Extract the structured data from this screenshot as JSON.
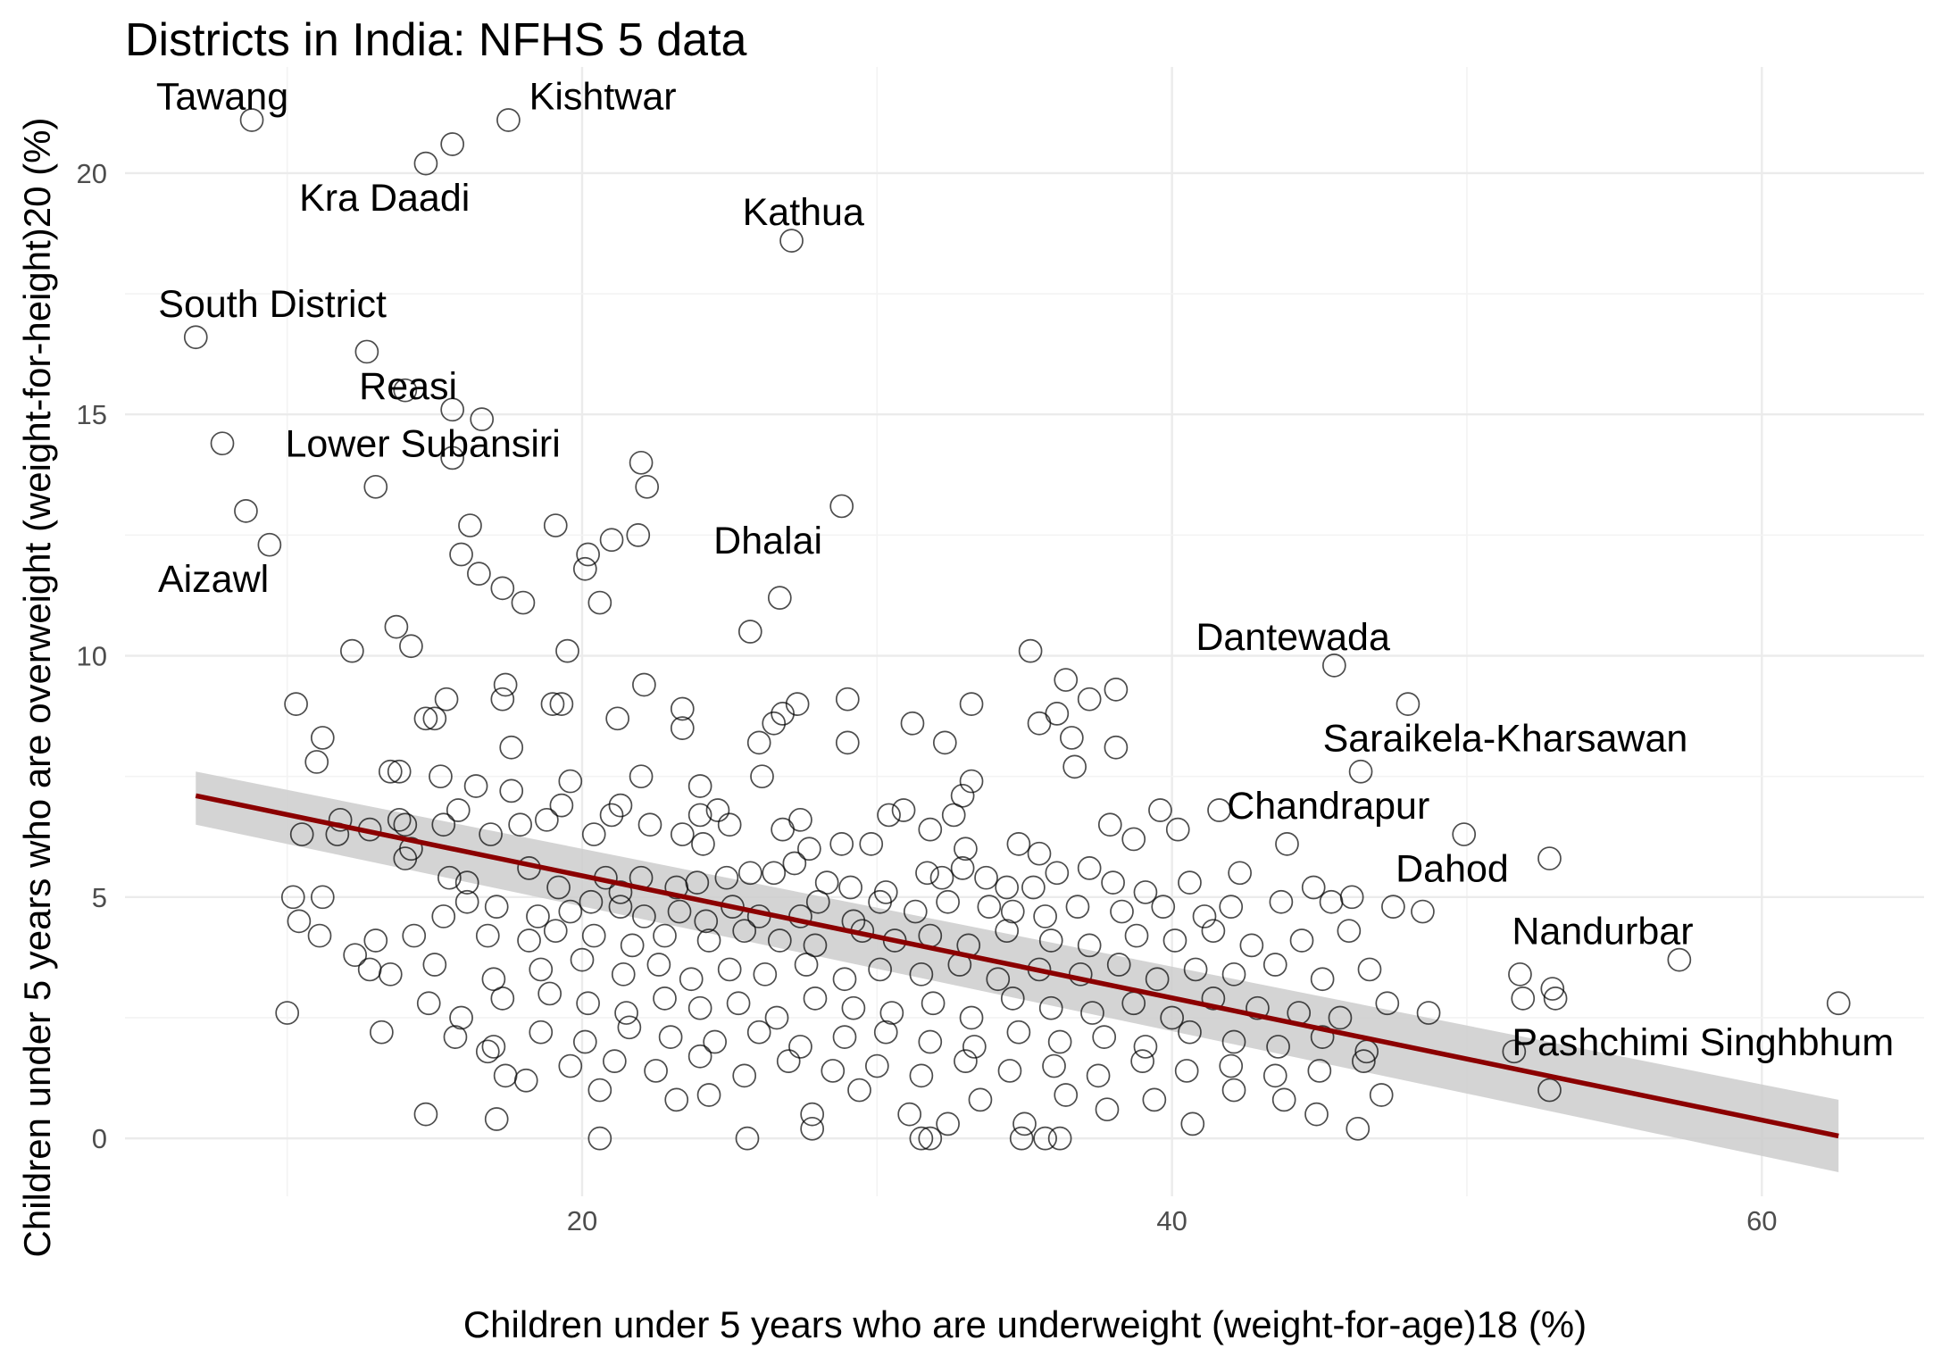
{
  "chart_data": {
    "type": "scatter",
    "title": "Districts in India: NFHS 5 data",
    "xlabel": "Children under 5 years who are underweight (weight-for-age)18 (%)",
    "ylabel": "Children under 5 years who are overweight (weight-for-height)20 (%)",
    "xlim": [
      4.5,
      65.5
    ],
    "ylim": [
      -1.2,
      22.2
    ],
    "x_ticks": [
      20,
      40,
      60
    ],
    "x_tick_labels": [
      "20",
      "40",
      "60"
    ],
    "y_ticks": [
      0,
      5,
      10,
      15,
      20
    ],
    "y_tick_labels": [
      "0",
      "5",
      "10",
      "15",
      "20"
    ],
    "grid": true,
    "colors": {
      "points": "#000000",
      "trend_line": "#8b0000",
      "confidence_band": "#cccccc",
      "grid": "#ebebeb"
    },
    "trend_line": {
      "x": [
        6.9,
        62.6
      ],
      "y": [
        7.1,
        0.05
      ],
      "band_upper": [
        7.6,
        0.8
      ],
      "band_lower": [
        6.5,
        -0.7
      ]
    },
    "annotations": [
      {
        "label": "Tawang",
        "x": 7.8,
        "y": 21.6
      },
      {
        "label": "Kishtwar",
        "x": 20.7,
        "y": 21.6
      },
      {
        "label": "Kra Daadi",
        "x": 13.3,
        "y": 19.5
      },
      {
        "label": "Kathua",
        "x": 27.5,
        "y": 19.2
      },
      {
        "label": "South District",
        "x": 9.5,
        "y": 17.3
      },
      {
        "label": "Reasi",
        "x": 14.1,
        "y": 15.6
      },
      {
        "label": "Lower Subansiri",
        "x": 14.6,
        "y": 14.4
      },
      {
        "label": "Dhalai",
        "x": 26.3,
        "y": 12.4
      },
      {
        "label": "Aizawl",
        "x": 7.5,
        "y": 11.6
      },
      {
        "label": "Dantewada",
        "x": 44.1,
        "y": 10.4
      },
      {
        "label": "Saraikela-Kharsawan",
        "x": 51.3,
        "y": 8.3
      },
      {
        "label": "Chandrapur",
        "x": 45.3,
        "y": 6.9
      },
      {
        "label": "Dahod",
        "x": 49.5,
        "y": 5.6
      },
      {
        "label": "Nandurbar",
        "x": 54.6,
        "y": 4.3
      },
      {
        "label": "Pashchimi Singhbhum",
        "x": 58.0,
        "y": 2.0
      }
    ],
    "points": [
      [
        8.8,
        21.1
      ],
      [
        17.5,
        21.1
      ],
      [
        15.6,
        20.6
      ],
      [
        14.7,
        20.2
      ],
      [
        27.1,
        18.6
      ],
      [
        6.9,
        16.6
      ],
      [
        12.7,
        16.3
      ],
      [
        14.0,
        15.5
      ],
      [
        15.6,
        15.1
      ],
      [
        16.6,
        14.9
      ],
      [
        7.8,
        14.4
      ],
      [
        15.6,
        14.1
      ],
      [
        22.0,
        14.0
      ],
      [
        22.2,
        13.5
      ],
      [
        13.0,
        13.5
      ],
      [
        8.6,
        13.0
      ],
      [
        28.8,
        13.1
      ],
      [
        9.4,
        12.3
      ],
      [
        16.2,
        12.7
      ],
      [
        19.1,
        12.7
      ],
      [
        21.9,
        12.5
      ],
      [
        21.0,
        12.4
      ],
      [
        15.9,
        12.1
      ],
      [
        20.2,
        12.1
      ],
      [
        20.1,
        11.8
      ],
      [
        16.5,
        11.7
      ],
      [
        17.3,
        11.4
      ],
      [
        18.0,
        11.1
      ],
      [
        20.6,
        11.1
      ],
      [
        26.7,
        11.2
      ],
      [
        12.2,
        10.1
      ],
      [
        14.2,
        10.2
      ],
      [
        13.7,
        10.6
      ],
      [
        19.5,
        10.1
      ],
      [
        25.7,
        10.5
      ],
      [
        35.2,
        10.1
      ],
      [
        45.5,
        9.8
      ],
      [
        10.3,
        9.0
      ],
      [
        15.4,
        9.1
      ],
      [
        17.3,
        9.1
      ],
      [
        19.0,
        9.0
      ],
      [
        19.3,
        9.0
      ],
      [
        17.4,
        9.4
      ],
      [
        22.1,
        9.4
      ],
      [
        23.4,
        8.9
      ],
      [
        27.3,
        9.0
      ],
      [
        29.0,
        9.1
      ],
      [
        33.2,
        9.0
      ],
      [
        36.4,
        9.5
      ],
      [
        37.2,
        9.1
      ],
      [
        38.1,
        9.3
      ],
      [
        48.0,
        9.0
      ],
      [
        11.2,
        8.3
      ],
      [
        14.7,
        8.7
      ],
      [
        15.0,
        8.7
      ],
      [
        17.6,
        8.1
      ],
      [
        21.2,
        8.7
      ],
      [
        23.4,
        8.5
      ],
      [
        26.0,
        8.2
      ],
      [
        26.5,
        8.6
      ],
      [
        26.8,
        8.8
      ],
      [
        29.0,
        8.2
      ],
      [
        31.2,
        8.6
      ],
      [
        32.3,
        8.2
      ],
      [
        35.5,
        8.6
      ],
      [
        36.1,
        8.8
      ],
      [
        36.6,
        8.3
      ],
      [
        38.1,
        8.1
      ],
      [
        46.4,
        7.6
      ],
      [
        11.0,
        7.8
      ],
      [
        13.5,
        7.6
      ],
      [
        13.8,
        7.6
      ],
      [
        15.2,
        7.5
      ],
      [
        16.4,
        7.3
      ],
      [
        17.6,
        7.2
      ],
      [
        19.6,
        7.4
      ],
      [
        22.0,
        7.5
      ],
      [
        24.0,
        7.3
      ],
      [
        26.1,
        7.5
      ],
      [
        33.2,
        7.4
      ],
      [
        32.9,
        7.1
      ],
      [
        36.7,
        7.7
      ],
      [
        10.5,
        6.3
      ],
      [
        11.8,
        6.6
      ],
      [
        11.7,
        6.3
      ],
      [
        12.8,
        6.4
      ],
      [
        14.2,
        6.0
      ],
      [
        13.8,
        6.6
      ],
      [
        14.0,
        6.5
      ],
      [
        15.3,
        6.5
      ],
      [
        15.8,
        6.8
      ],
      [
        16.9,
        6.3
      ],
      [
        17.9,
        6.5
      ],
      [
        18.8,
        6.6
      ],
      [
        19.3,
        6.9
      ],
      [
        20.4,
        6.3
      ],
      [
        21.3,
        6.9
      ],
      [
        21.0,
        6.7
      ],
      [
        22.3,
        6.5
      ],
      [
        23.4,
        6.3
      ],
      [
        24.0,
        6.7
      ],
      [
        24.1,
        6.1
      ],
      [
        24.6,
        6.8
      ],
      [
        25.0,
        6.5
      ],
      [
        26.8,
        6.4
      ],
      [
        27.4,
        6.6
      ],
      [
        27.7,
        6.0
      ],
      [
        28.8,
        6.1
      ],
      [
        29.8,
        6.1
      ],
      [
        30.4,
        6.7
      ],
      [
        30.9,
        6.8
      ],
      [
        31.8,
        6.4
      ],
      [
        32.6,
        6.7
      ],
      [
        33.0,
        6.0
      ],
      [
        34.8,
        6.1
      ],
      [
        35.5,
        5.9
      ],
      [
        37.9,
        6.5
      ],
      [
        38.7,
        6.2
      ],
      [
        39.6,
        6.8
      ],
      [
        40.2,
        6.4
      ],
      [
        41.6,
        6.8
      ],
      [
        43.9,
        6.1
      ],
      [
        49.9,
        6.3
      ],
      [
        52.8,
        5.8
      ],
      [
        14.0,
        5.8
      ],
      [
        15.5,
        5.4
      ],
      [
        16.1,
        5.3
      ],
      [
        18.2,
        5.6
      ],
      [
        19.2,
        5.2
      ],
      [
        20.8,
        5.4
      ],
      [
        21.3,
        5.1
      ],
      [
        22.0,
        5.4
      ],
      [
        23.2,
        5.2
      ],
      [
        23.9,
        5.3
      ],
      [
        24.9,
        5.4
      ],
      [
        25.7,
        5.5
      ],
      [
        26.5,
        5.5
      ],
      [
        27.2,
        5.7
      ],
      [
        28.3,
        5.3
      ],
      [
        29.1,
        5.2
      ],
      [
        30.3,
        5.1
      ],
      [
        31.7,
        5.5
      ],
      [
        32.2,
        5.4
      ],
      [
        32.9,
        5.6
      ],
      [
        33.7,
        5.4
      ],
      [
        34.4,
        5.2
      ],
      [
        35.3,
        5.2
      ],
      [
        36.1,
        5.5
      ],
      [
        37.2,
        5.6
      ],
      [
        38.0,
        5.3
      ],
      [
        39.1,
        5.1
      ],
      [
        40.6,
        5.3
      ],
      [
        42.3,
        5.5
      ],
      [
        44.8,
        5.2
      ],
      [
        46.1,
        5.0
      ],
      [
        10.2,
        5.0
      ],
      [
        11.2,
        5.0
      ],
      [
        15.3,
        4.6
      ],
      [
        16.1,
        4.9
      ],
      [
        17.1,
        4.8
      ],
      [
        18.5,
        4.6
      ],
      [
        19.6,
        4.7
      ],
      [
        20.3,
        4.9
      ],
      [
        21.3,
        4.8
      ],
      [
        22.1,
        4.6
      ],
      [
        23.3,
        4.7
      ],
      [
        24.2,
        4.5
      ],
      [
        25.1,
        4.8
      ],
      [
        26.0,
        4.6
      ],
      [
        27.4,
        4.6
      ],
      [
        28.0,
        4.9
      ],
      [
        29.2,
        4.5
      ],
      [
        30.1,
        4.9
      ],
      [
        31.3,
        4.7
      ],
      [
        32.4,
        4.9
      ],
      [
        33.8,
        4.8
      ],
      [
        34.6,
        4.7
      ],
      [
        35.7,
        4.6
      ],
      [
        36.8,
        4.8
      ],
      [
        38.3,
        4.7
      ],
      [
        39.7,
        4.8
      ],
      [
        41.1,
        4.6
      ],
      [
        42.0,
        4.8
      ],
      [
        43.7,
        4.9
      ],
      [
        45.4,
        4.9
      ],
      [
        47.5,
        4.8
      ],
      [
        48.5,
        4.7
      ],
      [
        10.4,
        4.5
      ],
      [
        11.1,
        4.2
      ],
      [
        13.0,
        4.1
      ],
      [
        14.3,
        4.2
      ],
      [
        16.8,
        4.2
      ],
      [
        18.2,
        4.1
      ],
      [
        19.1,
        4.3
      ],
      [
        20.4,
        4.2
      ],
      [
        21.7,
        4.0
      ],
      [
        22.8,
        4.2
      ],
      [
        24.3,
        4.1
      ],
      [
        25.5,
        4.3
      ],
      [
        26.7,
        4.1
      ],
      [
        27.9,
        4.0
      ],
      [
        29.5,
        4.3
      ],
      [
        30.6,
        4.1
      ],
      [
        31.8,
        4.2
      ],
      [
        33.1,
        4.0
      ],
      [
        34.4,
        4.3
      ],
      [
        35.9,
        4.1
      ],
      [
        37.2,
        4.0
      ],
      [
        38.8,
        4.2
      ],
      [
        40.1,
        4.1
      ],
      [
        41.4,
        4.3
      ],
      [
        42.7,
        4.0
      ],
      [
        44.4,
        4.1
      ],
      [
        46.0,
        4.3
      ],
      [
        12.3,
        3.8
      ],
      [
        12.8,
        3.5
      ],
      [
        13.5,
        3.4
      ],
      [
        15.0,
        3.6
      ],
      [
        17.0,
        3.3
      ],
      [
        18.6,
        3.5
      ],
      [
        20.0,
        3.7
      ],
      [
        21.4,
        3.4
      ],
      [
        22.6,
        3.6
      ],
      [
        23.7,
        3.3
      ],
      [
        25.0,
        3.5
      ],
      [
        26.2,
        3.4
      ],
      [
        27.6,
        3.6
      ],
      [
        28.9,
        3.3
      ],
      [
        30.1,
        3.5
      ],
      [
        31.5,
        3.4
      ],
      [
        32.8,
        3.6
      ],
      [
        34.1,
        3.3
      ],
      [
        35.5,
        3.5
      ],
      [
        36.9,
        3.4
      ],
      [
        38.2,
        3.6
      ],
      [
        39.5,
        3.3
      ],
      [
        40.8,
        3.5
      ],
      [
        42.1,
        3.4
      ],
      [
        43.5,
        3.6
      ],
      [
        45.1,
        3.3
      ],
      [
        46.7,
        3.5
      ],
      [
        51.8,
        3.4
      ],
      [
        52.9,
        3.1
      ],
      [
        57.2,
        3.7
      ],
      [
        14.8,
        2.8
      ],
      [
        15.9,
        2.5
      ],
      [
        17.3,
        2.9
      ],
      [
        18.9,
        3.0
      ],
      [
        20.2,
        2.8
      ],
      [
        21.5,
        2.6
      ],
      [
        22.8,
        2.9
      ],
      [
        24.0,
        2.7
      ],
      [
        25.3,
        2.8
      ],
      [
        26.6,
        2.5
      ],
      [
        27.9,
        2.9
      ],
      [
        29.2,
        2.7
      ],
      [
        30.5,
        2.6
      ],
      [
        31.9,
        2.8
      ],
      [
        33.2,
        2.5
      ],
      [
        34.6,
        2.9
      ],
      [
        35.9,
        2.7
      ],
      [
        37.3,
        2.6
      ],
      [
        38.7,
        2.8
      ],
      [
        40.0,
        2.5
      ],
      [
        41.4,
        2.9
      ],
      [
        42.9,
        2.7
      ],
      [
        44.3,
        2.6
      ],
      [
        45.7,
        2.5
      ],
      [
        47.3,
        2.8
      ],
      [
        48.7,
        2.6
      ],
      [
        51.9,
        2.9
      ],
      [
        53.0,
        2.9
      ],
      [
        62.6,
        2.8
      ],
      [
        10.0,
        2.6
      ],
      [
        13.2,
        2.2
      ],
      [
        15.7,
        2.1
      ],
      [
        17.0,
        1.9
      ],
      [
        18.6,
        2.2
      ],
      [
        20.1,
        2.0
      ],
      [
        21.6,
        2.3
      ],
      [
        23.0,
        2.1
      ],
      [
        24.5,
        2.0
      ],
      [
        26.0,
        2.2
      ],
      [
        27.4,
        1.9
      ],
      [
        28.9,
        2.1
      ],
      [
        30.3,
        2.2
      ],
      [
        31.8,
        2.0
      ],
      [
        33.3,
        1.9
      ],
      [
        34.8,
        2.2
      ],
      [
        36.2,
        2.0
      ],
      [
        37.7,
        2.1
      ],
      [
        39.1,
        1.9
      ],
      [
        40.6,
        2.2
      ],
      [
        42.1,
        2.0
      ],
      [
        43.6,
        1.9
      ],
      [
        45.1,
        2.1
      ],
      [
        46.6,
        1.8
      ],
      [
        16.8,
        1.8
      ],
      [
        17.4,
        1.3
      ],
      [
        19.6,
        1.5
      ],
      [
        21.1,
        1.6
      ],
      [
        22.5,
        1.4
      ],
      [
        24.0,
        1.7
      ],
      [
        25.5,
        1.3
      ],
      [
        27.0,
        1.6
      ],
      [
        28.5,
        1.4
      ],
      [
        30.0,
        1.5
      ],
      [
        31.5,
        1.3
      ],
      [
        33.0,
        1.6
      ],
      [
        34.5,
        1.4
      ],
      [
        36.0,
        1.5
      ],
      [
        37.5,
        1.3
      ],
      [
        39.0,
        1.6
      ],
      [
        40.5,
        1.4
      ],
      [
        42.0,
        1.5
      ],
      [
        43.5,
        1.3
      ],
      [
        45.0,
        1.4
      ],
      [
        46.5,
        1.6
      ],
      [
        51.6,
        1.8
      ],
      [
        52.8,
        1.0
      ],
      [
        18.1,
        1.2
      ],
      [
        20.6,
        1.0
      ],
      [
        23.2,
        0.8
      ],
      [
        24.3,
        0.9
      ],
      [
        27.8,
        0.5
      ],
      [
        29.4,
        1.0
      ],
      [
        31.1,
        0.5
      ],
      [
        32.4,
        0.3
      ],
      [
        33.5,
        0.8
      ],
      [
        35.0,
        0.3
      ],
      [
        36.4,
        0.9
      ],
      [
        37.8,
        0.6
      ],
      [
        39.4,
        0.8
      ],
      [
        40.7,
        0.3
      ],
      [
        42.1,
        1.0
      ],
      [
        43.8,
        0.8
      ],
      [
        44.9,
        0.5
      ],
      [
        46.3,
        0.2
      ],
      [
        47.1,
        0.9
      ],
      [
        14.7,
        0.5
      ],
      [
        17.1,
        0.4
      ],
      [
        20.6,
        0.0
      ],
      [
        25.6,
        0.0
      ],
      [
        27.8,
        0.2
      ],
      [
        31.5,
        0.0
      ],
      [
        31.8,
        0.0
      ],
      [
        34.9,
        0.0
      ],
      [
        35.7,
        0.0
      ],
      [
        36.2,
        0.0
      ]
    ]
  }
}
